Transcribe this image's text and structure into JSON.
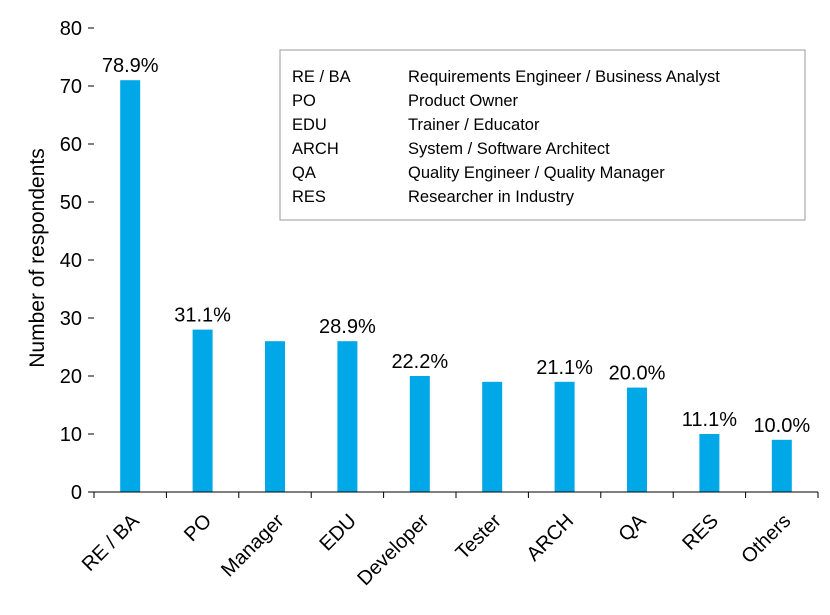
{
  "chart_data": {
    "type": "bar",
    "title": "",
    "xlabel": "",
    "ylabel": "Number of respondents",
    "ylim": [
      0,
      80
    ],
    "yticks": [
      0,
      10,
      20,
      30,
      40,
      50,
      60,
      70,
      80
    ],
    "categories": [
      "RE / BA",
      "PO",
      "Manager",
      "EDU",
      "Developer",
      "Tester",
      "ARCH",
      "QA",
      "RES",
      "Others"
    ],
    "values": [
      71,
      28,
      26,
      26,
      20,
      19,
      19,
      18,
      10,
      9
    ],
    "bar_color": "#00a8e8",
    "data_labels": [
      {
        "category": "RE / BA",
        "text": "78.9%"
      },
      {
        "category": "PO",
        "text": "31.1%"
      },
      {
        "category": "EDU",
        "text": "28.9%"
      },
      {
        "category": "Developer",
        "text": "22.2%"
      },
      {
        "category": "ARCH",
        "text": "21.1%"
      },
      {
        "category": "QA",
        "text": "20.0%"
      },
      {
        "category": "RES",
        "text": "11.1%"
      },
      {
        "category": "Others",
        "text": "10.0%"
      }
    ],
    "grid": false,
    "legend": {
      "position": "top-right",
      "entries": [
        {
          "abbr": "RE / BA",
          "desc": "Requirements Engineer / Business Analyst"
        },
        {
          "abbr": "PO",
          "desc": "Product Owner"
        },
        {
          "abbr": "EDU",
          "desc": "Trainer / Educator"
        },
        {
          "abbr": "ARCH",
          "desc": "System / Software Architect"
        },
        {
          "abbr": "QA",
          "desc": "Quality Engineer / Quality Manager"
        },
        {
          "abbr": "RES",
          "desc": "Researcher in Industry"
        }
      ]
    }
  }
}
